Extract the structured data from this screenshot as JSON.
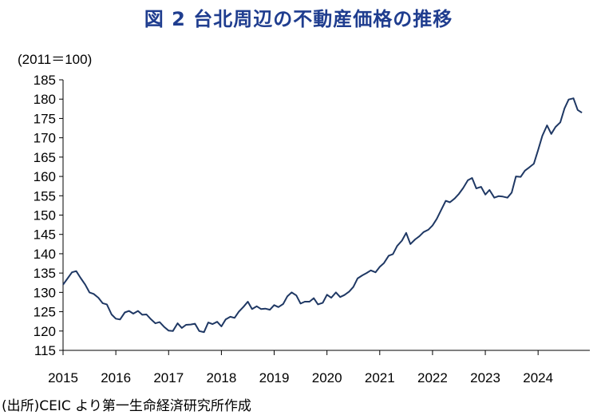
{
  "title": "図 2  台北周辺の不動産価格の推移",
  "unit_label": "(2011＝100)",
  "source": "(出所)CEIC より第一生命経済研究所作成",
  "colors": {
    "line": "#1f3864",
    "title": "#1f3d8f",
    "axis": "#000000"
  },
  "chart_data": {
    "type": "line",
    "ylim": [
      115,
      185
    ],
    "yticks": [
      115,
      120,
      125,
      130,
      135,
      140,
      145,
      150,
      155,
      160,
      165,
      170,
      175,
      180,
      185
    ],
    "xlim": [
      2015,
      2024.98
    ],
    "xticks": [
      2015,
      2016,
      2017,
      2018,
      2019,
      2020,
      2021,
      2022,
      2023,
      2024
    ],
    "xtick_labels": [
      "2015",
      "2016",
      "2017",
      "2018",
      "2019",
      "2020",
      "2021",
      "2022",
      "2023",
      "2024"
    ],
    "grid": false,
    "series": [
      {
        "values": [
          [
            2015.0,
            132.0
          ],
          [
            2015.08,
            133.5
          ],
          [
            2015.17,
            135.2
          ],
          [
            2015.25,
            135.5
          ],
          [
            2015.33,
            133.8
          ],
          [
            2015.42,
            132.0
          ],
          [
            2015.5,
            130.0
          ],
          [
            2015.58,
            129.6
          ],
          [
            2015.67,
            128.6
          ],
          [
            2015.75,
            127.2
          ],
          [
            2015.83,
            126.9
          ],
          [
            2015.92,
            124.3
          ],
          [
            2016.0,
            123.2
          ],
          [
            2016.08,
            123.0
          ],
          [
            2016.17,
            124.8
          ],
          [
            2016.25,
            125.2
          ],
          [
            2016.33,
            124.5
          ],
          [
            2016.42,
            125.2
          ],
          [
            2016.5,
            124.2
          ],
          [
            2016.58,
            124.3
          ],
          [
            2016.67,
            123.0
          ],
          [
            2016.75,
            122.0
          ],
          [
            2016.83,
            122.3
          ],
          [
            2016.92,
            121.0
          ],
          [
            2017.0,
            120.1
          ],
          [
            2017.08,
            120.0
          ],
          [
            2017.17,
            122.0
          ],
          [
            2017.25,
            120.8
          ],
          [
            2017.33,
            121.6
          ],
          [
            2017.42,
            121.7
          ],
          [
            2017.5,
            121.9
          ],
          [
            2017.58,
            120.0
          ],
          [
            2017.67,
            119.7
          ],
          [
            2017.75,
            122.2
          ],
          [
            2017.83,
            121.8
          ],
          [
            2017.92,
            122.4
          ],
          [
            2018.0,
            121.2
          ],
          [
            2018.08,
            123.0
          ],
          [
            2018.17,
            123.7
          ],
          [
            2018.25,
            123.4
          ],
          [
            2018.33,
            125.0
          ],
          [
            2018.42,
            126.3
          ],
          [
            2018.5,
            127.6
          ],
          [
            2018.58,
            125.7
          ],
          [
            2018.67,
            126.4
          ],
          [
            2018.75,
            125.7
          ],
          [
            2018.83,
            125.8
          ],
          [
            2018.92,
            125.5
          ],
          [
            2019.0,
            126.7
          ],
          [
            2019.08,
            126.2
          ],
          [
            2019.17,
            127.0
          ],
          [
            2019.25,
            129.0
          ],
          [
            2019.33,
            130.0
          ],
          [
            2019.42,
            129.2
          ],
          [
            2019.5,
            127.1
          ],
          [
            2019.58,
            127.6
          ],
          [
            2019.67,
            127.6
          ],
          [
            2019.75,
            128.5
          ],
          [
            2019.83,
            126.9
          ],
          [
            2019.92,
            127.3
          ],
          [
            2020.0,
            129.4
          ],
          [
            2020.08,
            128.6
          ],
          [
            2020.17,
            130.0
          ],
          [
            2020.25,
            128.8
          ],
          [
            2020.33,
            129.3
          ],
          [
            2020.42,
            130.2
          ],
          [
            2020.5,
            131.4
          ],
          [
            2020.58,
            133.6
          ],
          [
            2020.67,
            134.4
          ],
          [
            2020.75,
            135.0
          ],
          [
            2020.83,
            135.7
          ],
          [
            2020.92,
            135.2
          ],
          [
            2021.0,
            136.6
          ],
          [
            2021.08,
            137.6
          ],
          [
            2021.17,
            139.5
          ],
          [
            2021.25,
            139.9
          ],
          [
            2021.33,
            142.0
          ],
          [
            2021.42,
            143.4
          ],
          [
            2021.5,
            145.4
          ],
          [
            2021.58,
            142.5
          ],
          [
            2021.67,
            143.7
          ],
          [
            2021.75,
            144.5
          ],
          [
            2021.83,
            145.6
          ],
          [
            2021.92,
            146.2
          ],
          [
            2022.0,
            147.3
          ],
          [
            2022.08,
            149.0
          ],
          [
            2022.17,
            151.5
          ],
          [
            2022.25,
            153.7
          ],
          [
            2022.33,
            153.3
          ],
          [
            2022.42,
            154.3
          ],
          [
            2022.5,
            155.5
          ],
          [
            2022.58,
            157.0
          ],
          [
            2022.67,
            159.0
          ],
          [
            2022.75,
            159.6
          ],
          [
            2022.83,
            156.9
          ],
          [
            2022.92,
            157.3
          ],
          [
            2023.0,
            155.3
          ],
          [
            2023.08,
            156.5
          ],
          [
            2023.17,
            154.5
          ],
          [
            2023.25,
            154.9
          ],
          [
            2023.33,
            154.8
          ],
          [
            2023.42,
            154.5
          ],
          [
            2023.5,
            155.8
          ],
          [
            2023.58,
            160.0
          ],
          [
            2023.67,
            159.9
          ],
          [
            2023.75,
            161.5
          ],
          [
            2023.83,
            162.3
          ],
          [
            2023.92,
            163.3
          ],
          [
            2024.0,
            166.8
          ],
          [
            2024.08,
            170.5
          ],
          [
            2024.17,
            173.2
          ],
          [
            2024.25,
            171.0
          ],
          [
            2024.33,
            172.8
          ],
          [
            2024.42,
            174.0
          ],
          [
            2024.5,
            177.6
          ],
          [
            2024.58,
            179.9
          ],
          [
            2024.67,
            180.2
          ],
          [
            2024.75,
            177.2
          ],
          [
            2024.83,
            176.5
          ]
        ]
      }
    ]
  }
}
